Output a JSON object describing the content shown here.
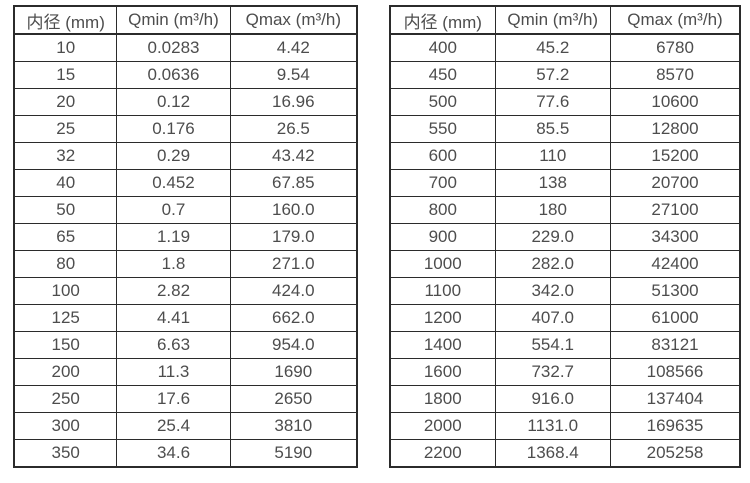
{
  "colors": {
    "border": "#2b2b2b",
    "text": "#4d4d4d",
    "background": "#ffffff"
  },
  "table_left": {
    "headers": [
      "内径 (mm)",
      "Qmin (m³/h)",
      "Qmax (m³/h)"
    ],
    "rows": [
      [
        "10",
        "0.0283",
        "4.42"
      ],
      [
        "15",
        "0.0636",
        "9.54"
      ],
      [
        "20",
        "0.12",
        "16.96"
      ],
      [
        "25",
        "0.176",
        "26.5"
      ],
      [
        "32",
        "0.29",
        "43.42"
      ],
      [
        "40",
        "0.452",
        "67.85"
      ],
      [
        "50",
        "0.7",
        "160.0"
      ],
      [
        "65",
        "1.19",
        "179.0"
      ],
      [
        "80",
        "1.8",
        "271.0"
      ],
      [
        "100",
        "2.82",
        "424.0"
      ],
      [
        "125",
        "4.41",
        "662.0"
      ],
      [
        "150",
        "6.63",
        "954.0"
      ],
      [
        "200",
        "11.3",
        "1690"
      ],
      [
        "250",
        "17.6",
        "2650"
      ],
      [
        "300",
        "25.4",
        "3810"
      ],
      [
        "350",
        "34.6",
        "5190"
      ]
    ]
  },
  "table_right": {
    "headers": [
      "内径 (mm)",
      "Qmin (m³/h)",
      "Qmax (m³/h)"
    ],
    "rows": [
      [
        "400",
        "45.2",
        "6780"
      ],
      [
        "450",
        "57.2",
        "8570"
      ],
      [
        "500",
        "77.6",
        "10600"
      ],
      [
        "550",
        "85.5",
        "12800"
      ],
      [
        "600",
        "110",
        "15200"
      ],
      [
        "700",
        "138",
        "20700"
      ],
      [
        "800",
        "180",
        "27100"
      ],
      [
        "900",
        "229.0",
        "34300"
      ],
      [
        "1000",
        "282.0",
        "42400"
      ],
      [
        "1100",
        "342.0",
        "51300"
      ],
      [
        "1200",
        "407.0",
        "61000"
      ],
      [
        "1400",
        "554.1",
        "83121"
      ],
      [
        "1600",
        "732.7",
        "108566"
      ],
      [
        "1800",
        "916.0",
        "137404"
      ],
      [
        "2000",
        "1131.0",
        "169635"
      ],
      [
        "2200",
        "1368.4",
        "205258"
      ]
    ]
  }
}
